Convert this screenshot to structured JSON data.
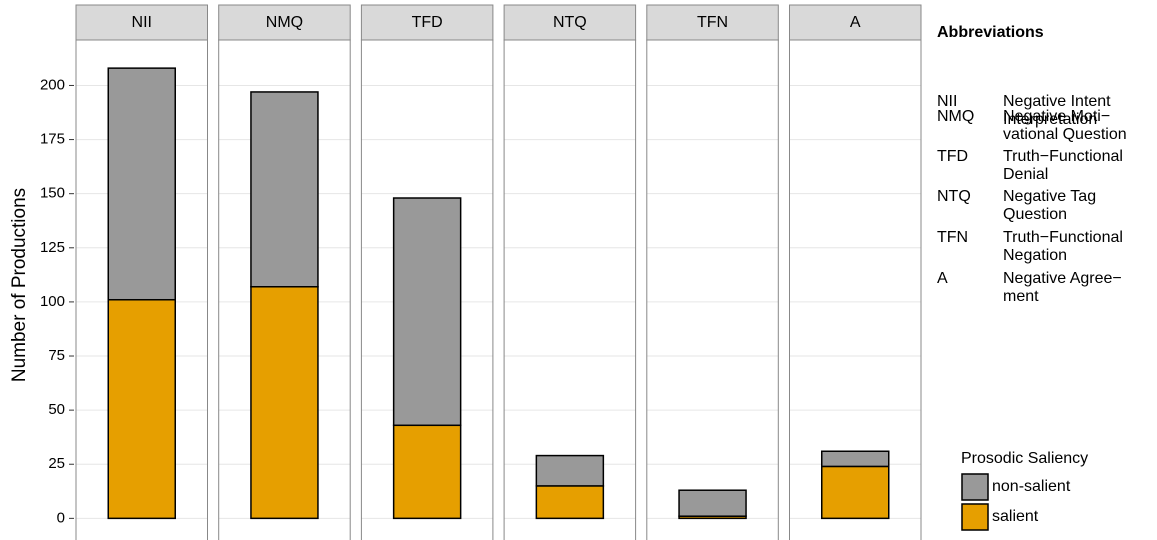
{
  "chart_data": {
    "type": "bar",
    "stacked": true,
    "y_label": "Number of Productions",
    "categories": [
      "NII",
      "NMQ",
      "TFD",
      "NTQ",
      "TFN",
      "A"
    ],
    "series": [
      {
        "name": "salient",
        "color": "#E69F00",
        "values": [
          101,
          107,
          43,
          15,
          1,
          24
        ]
      },
      {
        "name": "non-salient",
        "color": "#999999",
        "values": [
          107,
          90,
          105,
          14,
          12,
          7
        ]
      }
    ],
    "legend_title": "Prosodic Saliency",
    "ylim": [
      -10,
      221
    ],
    "yticks": [
      0,
      25,
      50,
      75,
      100,
      125,
      150,
      175,
      200
    ],
    "grid": true,
    "abbreviations": {
      "title": "Abbreviations",
      "items": [
        {
          "code": "NII",
          "lines": [
            "Negative Intent",
            "Interpretation"
          ]
        },
        {
          "code": "NMQ",
          "lines": [
            "Negative Moti−",
            "vational Question"
          ]
        },
        {
          "code": "TFD",
          "lines": [
            "Truth−Functional",
            "Denial"
          ]
        },
        {
          "code": "NTQ",
          "lines": [
            "Negative Tag",
            "Question"
          ]
        },
        {
          "code": "TFN",
          "lines": [
            "Truth−Functional",
            "Negation"
          ]
        },
        {
          "code": "A",
          "lines": [
            "Negative Agree−",
            "ment"
          ]
        }
      ]
    }
  }
}
